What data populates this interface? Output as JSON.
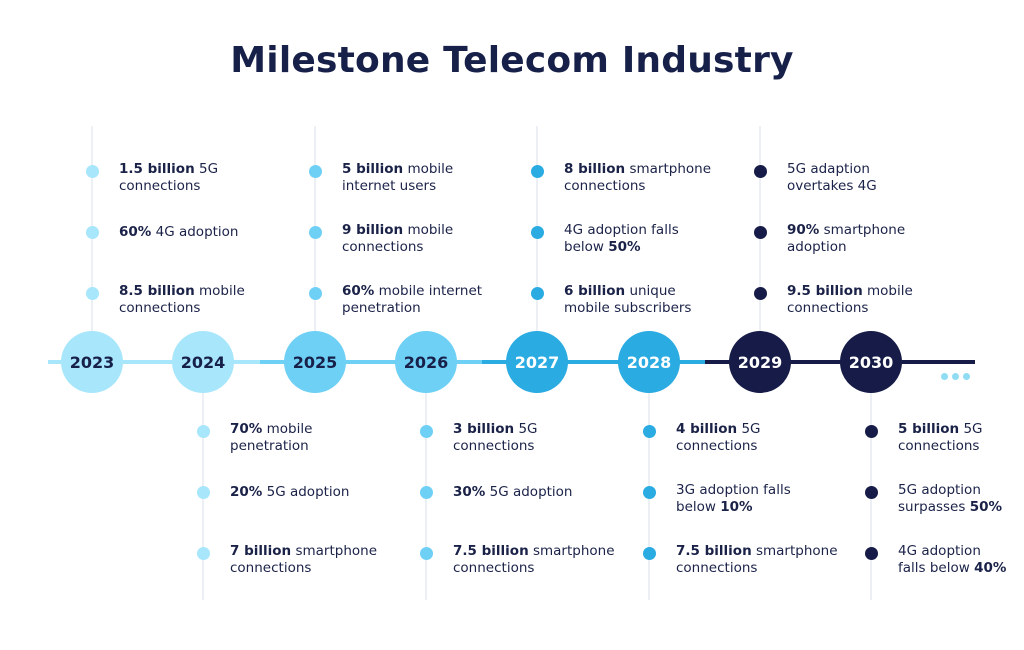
{
  "title": "Milestone Telecom Industry",
  "colors": {
    "light": "#a7e6fb",
    "medium": "#6fd0f5",
    "bright": "#2aabe1",
    "dark": "#161c47",
    "text": "#1b2248",
    "gridline": "#eceff4"
  },
  "years": [
    {
      "label": "2023",
      "tone": "light",
      "side": "top",
      "items": [
        {
          "bold": "1.5 billion",
          "line1": " 5G",
          "line2": "connections"
        },
        {
          "bold": "60%",
          "line1": " 4G adoption",
          "line2": ""
        },
        {
          "bold": "8.5 billion",
          "line1": " mobile",
          "line2": "connections"
        }
      ]
    },
    {
      "label": "2024",
      "tone": "light",
      "side": "bottom",
      "items": [
        {
          "bold": "70%",
          "line1": " mobile",
          "line2": "penetration"
        },
        {
          "bold": "20%",
          "line1": " 5G adoption",
          "line2": ""
        },
        {
          "bold": "7 billion",
          "line1": " smartphone",
          "line2": "connections"
        }
      ]
    },
    {
      "label": "2025",
      "tone": "medium",
      "side": "top",
      "items": [
        {
          "bold": "5 billion",
          "line1": " mobile",
          "line2": "internet users"
        },
        {
          "bold": "9 billion",
          "line1": " mobile",
          "line2": "connections"
        },
        {
          "bold": "60%",
          "line1": " mobile internet",
          "line2": "penetration"
        }
      ]
    },
    {
      "label": "2026",
      "tone": "medium",
      "side": "bottom",
      "items": [
        {
          "bold": "3 billion",
          "line1": " 5G",
          "line2": "connections"
        },
        {
          "bold": "30%",
          "line1": " 5G adoption",
          "line2": ""
        },
        {
          "bold": "7.5 billion",
          "line1": " smartphone",
          "line2": "connections"
        }
      ]
    },
    {
      "label": "2027",
      "tone": "bright",
      "side": "top",
      "items": [
        {
          "bold": "8 billion",
          "line1": " smartphone",
          "line2": "connections"
        },
        {
          "pre": "4G adoption falls",
          "bold2": "50%",
          "line2pre": "below "
        },
        {
          "bold": "6 billion",
          "line1": " unique",
          "line2": "mobile subscribers"
        }
      ]
    },
    {
      "label": "2028",
      "tone": "bright",
      "side": "bottom",
      "items": [
        {
          "bold": "4 billion",
          "line1": " 5G",
          "line2": "connections"
        },
        {
          "pre": "3G adoption falls",
          "bold2": "10%",
          "line2pre": "below "
        },
        {
          "bold": "7.5 billion",
          "line1": " smartphone",
          "line2": "connections"
        }
      ]
    },
    {
      "label": "2029",
      "tone": "dark",
      "side": "top",
      "items": [
        {
          "pre": "5G adaption",
          "line2": "overtakes 4G"
        },
        {
          "bold": "90%",
          "line1": " smartphone",
          "line2": "adoption"
        },
        {
          "bold": "9.5 billion",
          "line1": " mobile",
          "line2": "connections"
        }
      ]
    },
    {
      "label": "2030",
      "tone": "dark",
      "side": "bottom",
      "items": [
        {
          "bold": "5 billion",
          "line1": " 5G",
          "line2": "connections"
        },
        {
          "pre": "5G adoption",
          "bold2": "50%",
          "line2pre": "surpasses "
        },
        {
          "pre": "4G adoption",
          "bold2": "40%",
          "line2pre": "falls below "
        }
      ]
    }
  ]
}
